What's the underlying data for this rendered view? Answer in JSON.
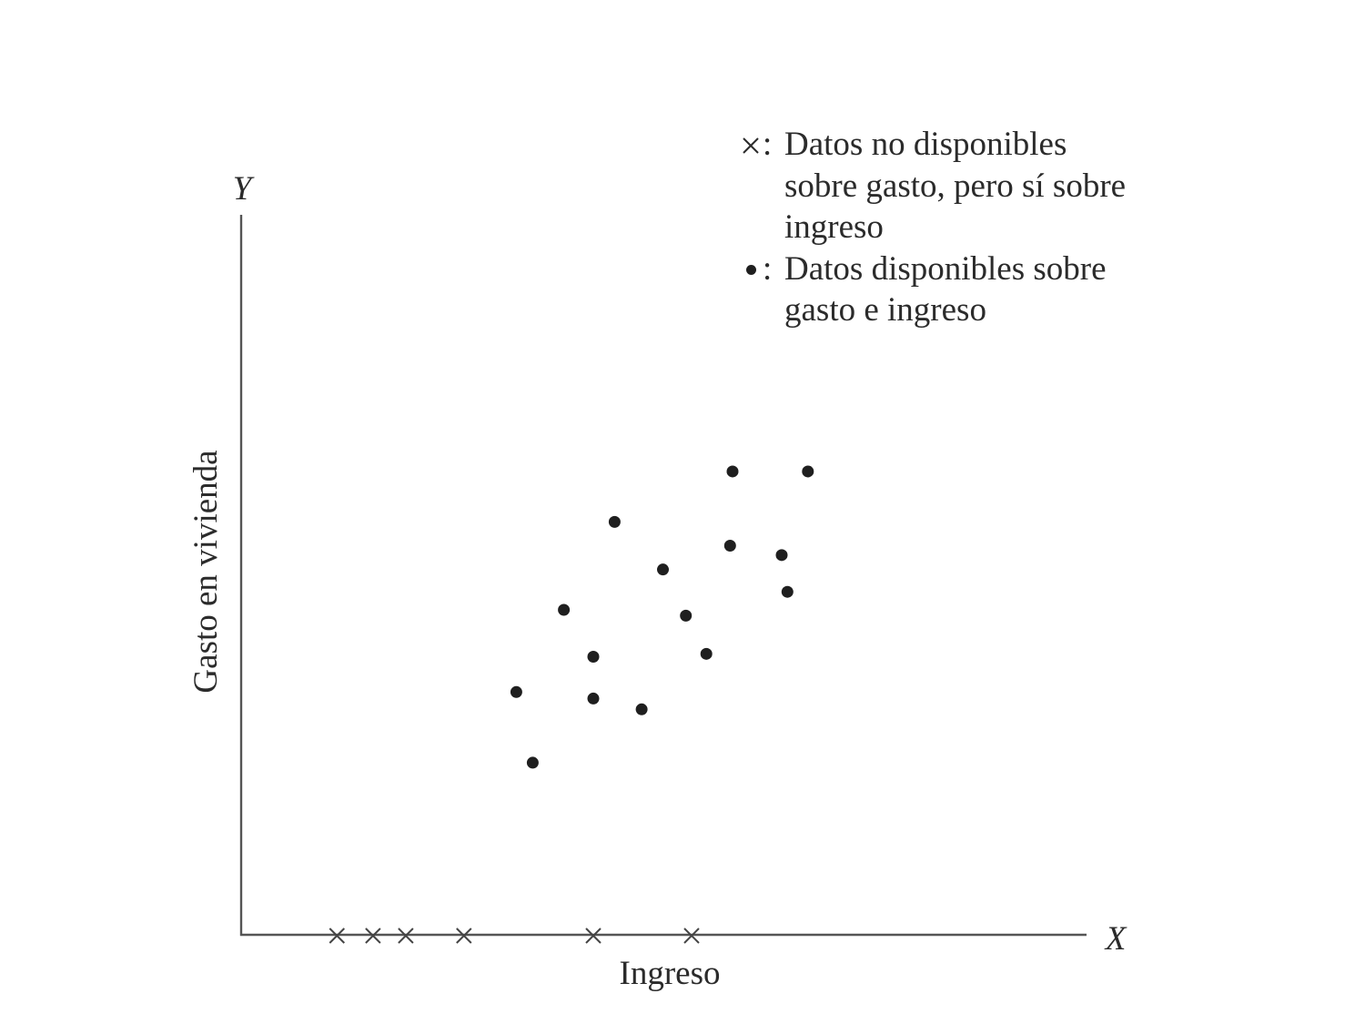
{
  "chart_data": {
    "type": "scatter",
    "title": "",
    "xlabel": "Ingreso",
    "ylabel": "Gasto en vivienda",
    "x_axis_symbol": "X",
    "y_axis_symbol": "Y",
    "grid": false,
    "legend_position": "top-right",
    "series": [
      {
        "name": "×: Datos no disponibles sobre gasto, pero sí sobre ingreso",
        "marker": "x",
        "points": [
          {
            "x": 11.7,
            "y": 0
          },
          {
            "x": 16.1,
            "y": 0
          },
          {
            "x": 20.1,
            "y": 0
          },
          {
            "x": 27.2,
            "y": 0
          },
          {
            "x": 43.0,
            "y": 0
          },
          {
            "x": 55.0,
            "y": 0
          }
        ]
      },
      {
        "name": "•: Datos disponibles sobre gasto e ingreso",
        "marker": "dot",
        "points": [
          {
            "x": 33.6,
            "y": 33.8
          },
          {
            "x": 35.6,
            "y": 24.0
          },
          {
            "x": 39.4,
            "y": 45.2
          },
          {
            "x": 43.0,
            "y": 38.7
          },
          {
            "x": 43.0,
            "y": 32.9
          },
          {
            "x": 45.6,
            "y": 57.4
          },
          {
            "x": 48.9,
            "y": 31.4
          },
          {
            "x": 51.5,
            "y": 50.8
          },
          {
            "x": 54.3,
            "y": 44.4
          },
          {
            "x": 56.8,
            "y": 39.1
          },
          {
            "x": 59.7,
            "y": 54.1
          },
          {
            "x": 60.0,
            "y": 64.4
          },
          {
            "x": 66.0,
            "y": 52.8
          },
          {
            "x": 66.7,
            "y": 47.7
          },
          {
            "x": 69.2,
            "y": 64.4
          }
        ]
      }
    ],
    "xlim": [
      0,
      100
    ],
    "ylim": [
      0,
      100
    ]
  },
  "legend": [
    {
      "symbol": "×",
      "separator": ":",
      "lines": [
        "Datos no disponibles",
        "sobre gasto, pero sí sobre",
        "ingreso"
      ]
    },
    {
      "symbol": "•",
      "separator": ":",
      "lines": [
        "Datos disponibles sobre",
        "gasto e ingreso"
      ]
    }
  ],
  "colors": {
    "ink": "#1f1f1f",
    "axis": "#555555",
    "background": "#ffffff"
  }
}
